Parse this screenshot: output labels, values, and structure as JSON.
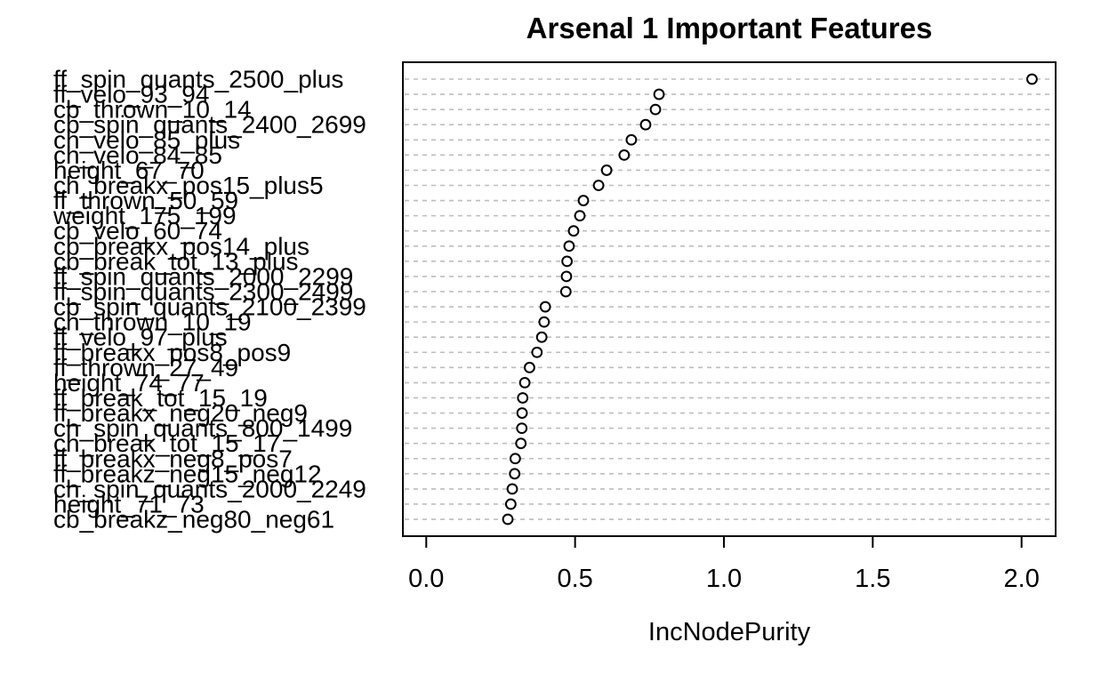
{
  "title": "Arsenal 1 Important Features",
  "xlabel": "IncNodePurity",
  "colors": {
    "background": "#ffffff",
    "grid_line": "#bdbdbd",
    "point_stroke": "#000000",
    "point_fill": "#ffffff",
    "axis": "#000000",
    "text": "#000000"
  },
  "chart_data": {
    "type": "scatter",
    "subtype": "dotchart-variable-importance",
    "title": "Arsenal 1 Important Features",
    "xlabel": "IncNodePurity",
    "ylabel": "",
    "xlim": [
      -0.08,
      2.12
    ],
    "x_ticks": [
      0.0,
      0.5,
      1.0,
      1.5,
      2.0
    ],
    "x_tick_labels": [
      "0.0",
      "0.5",
      "1.0",
      "1.5",
      "2.0"
    ],
    "grid": true,
    "grid_style": "dashed",
    "legend_position": "none",
    "point_marker": "open-circle",
    "categories": [
      "ff_spin_quants_2500_plus",
      "ff_velo_93_94",
      "cb_thrown_10_14",
      "cb_spin_quants_2400_2699",
      "ch_velo_85_plus",
      "ch_velo_84_85",
      "height_67_70",
      "ch_breakx_pos15_plus5",
      "ff_thrown_50_59",
      "weight_175_199",
      "cb_velo_60_74",
      "cb_breakx_pos14_plus",
      "cb_break_tot_13_plus",
      "ff_spin_quants_2000_2299",
      "ff_spin_quants_2300_2499",
      "cb_spin_quants_2100_2399",
      "ch_thrown_10_19",
      "ff_velo_97_plus",
      "ff_breakx_pos8_pos9",
      "ff_thrown_27_49",
      "height_74_77",
      "ff_break_tot_15_19",
      "ff_breakx_neg20_neg9",
      "ch_spin_quants_800_1499",
      "ch_break_tot_15_17",
      "ff_breakx_neg8_pos7",
      "ff_breakz_neg15_neg12",
      "ch_spin_quants_2000_2249",
      "height_71_73",
      "cb_breakz_neg80_neg61"
    ],
    "values": [
      2.035,
      0.782,
      0.77,
      0.737,
      0.689,
      0.665,
      0.606,
      0.579,
      0.528,
      0.516,
      0.495,
      0.48,
      0.473,
      0.471,
      0.469,
      0.4,
      0.396,
      0.388,
      0.372,
      0.347,
      0.331,
      0.324,
      0.322,
      0.321,
      0.318,
      0.299,
      0.297,
      0.289,
      0.284,
      0.274
    ]
  }
}
